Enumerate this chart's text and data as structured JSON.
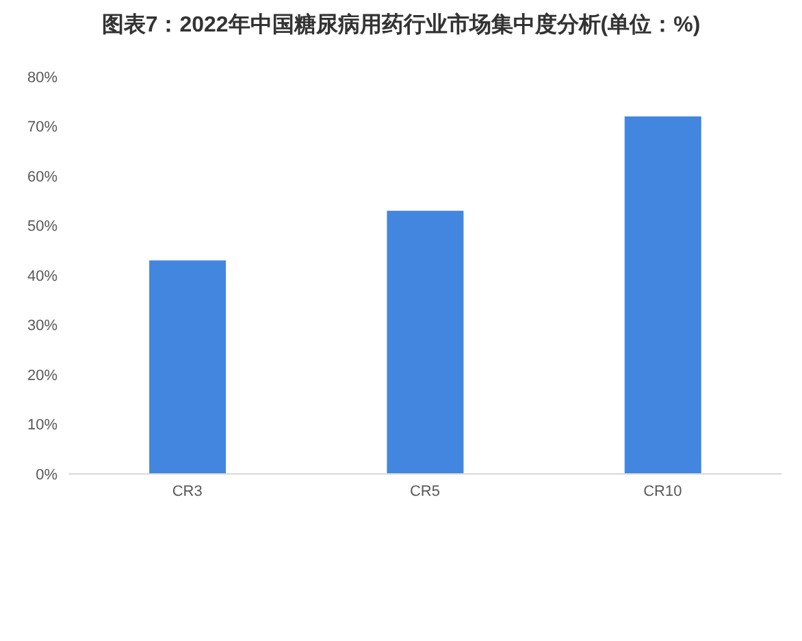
{
  "chart_data": {
    "type": "bar",
    "title": "图表7：2022年中国糖尿病用药行业市场集中度分析(单位：%)",
    "categories": [
      "CR3",
      "CR5",
      "CR10"
    ],
    "values": [
      43,
      53,
      72
    ],
    "color": "#4286e0",
    "ylim": [
      0,
      80
    ],
    "yticks": [
      {
        "value": 0,
        "label": "0%"
      },
      {
        "value": 10,
        "label": "10%"
      },
      {
        "value": 20,
        "label": "20%"
      },
      {
        "value": 30,
        "label": "30%"
      },
      {
        "value": 40,
        "label": "40%"
      },
      {
        "value": 50,
        "label": "50%"
      },
      {
        "value": 60,
        "label": "60%"
      },
      {
        "value": 70,
        "label": "70%"
      },
      {
        "value": 80,
        "label": "80%"
      }
    ]
  }
}
